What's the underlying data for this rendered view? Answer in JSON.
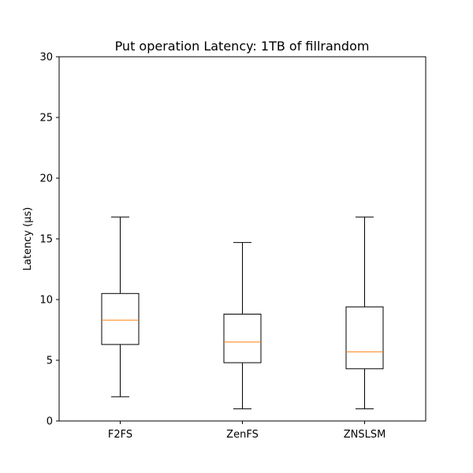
{
  "chart_data": {
    "type": "box",
    "title": "Put operation Latency: 1TB of fillrandom",
    "xlabel": "",
    "ylabel": "Latency (μs)",
    "ylim": [
      0,
      30
    ],
    "yticks": [
      0,
      5,
      10,
      15,
      20,
      25,
      30
    ],
    "grid": false,
    "colors": {
      "box": "#000000",
      "median": "#ff7f0e"
    },
    "categories": [
      "F2FS",
      "ZenFS",
      "ZNSLSM"
    ],
    "boxes": [
      {
        "category": "F2FS",
        "whisker_low": 2.0,
        "q1": 6.3,
        "median": 8.3,
        "q3": 10.5,
        "whisker_high": 16.8
      },
      {
        "category": "ZenFS",
        "whisker_low": 1.0,
        "q1": 4.8,
        "median": 6.5,
        "q3": 8.8,
        "whisker_high": 14.7
      },
      {
        "category": "ZNSLSM",
        "whisker_low": 1.0,
        "q1": 4.3,
        "median": 5.7,
        "q3": 9.4,
        "whisker_high": 16.8
      }
    ]
  }
}
